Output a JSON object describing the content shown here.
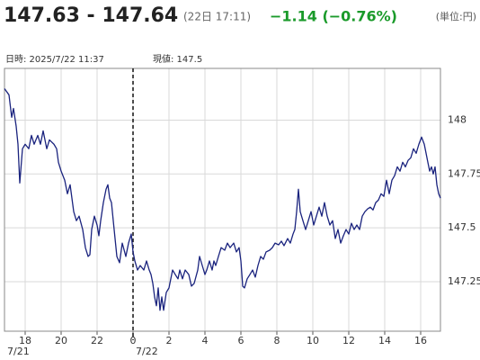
{
  "header": {
    "price": "147.63 - 147.64",
    "time": "(22日 17:11)",
    "change": "−1.14 (−0.76%)",
    "unit": "(単位:円)"
  },
  "info": {
    "datetime": "日時: 2025/7/22  11:37",
    "current": "現値: 147.5"
  },
  "chart_data": {
    "type": "line",
    "x": [
      -7.15,
      -6.9,
      -6.75,
      -6.65,
      -6.5,
      -6.4,
      -6.3,
      -6.15,
      -6,
      -5.8,
      -5.65,
      -5.5,
      -5.3,
      -5.15,
      -5,
      -4.8,
      -4.65,
      -4.4,
      -4.25,
      -4.15,
      -4,
      -3.8,
      -3.65,
      -3.5,
      -3.3,
      -3.15,
      -3,
      -2.8,
      -2.65,
      -2.5,
      -2.4,
      -2.3,
      -2.15,
      -2,
      -1.9,
      -1.8,
      -1.65,
      -1.5,
      -1.4,
      -1.3,
      -1.2,
      -1.1,
      -1,
      -0.9,
      -0.75,
      -0.6,
      -0.4,
      -0.25,
      -0.1,
      0,
      0.1,
      0.25,
      0.4,
      0.6,
      0.75,
      0.9,
      1,
      1.1,
      1.2,
      1.3,
      1.4,
      1.5,
      1.6,
      1.7,
      1.85,
      2,
      2.1,
      2.2,
      2.35,
      2.5,
      2.6,
      2.75,
      2.9,
      3.1,
      3.25,
      3.4,
      3.6,
      3.7,
      3.85,
      4,
      4.1,
      4.25,
      4.4,
      4.5,
      4.6,
      4.75,
      4.9,
      5.1,
      5.25,
      5.4,
      5.6,
      5.75,
      5.9,
      6,
      6.1,
      6.2,
      6.35,
      6.5,
      6.65,
      6.8,
      6.95,
      7.1,
      7.25,
      7.4,
      7.6,
      7.75,
      7.9,
      8.1,
      8.25,
      8.4,
      8.6,
      8.75,
      8.9,
      9,
      9.1,
      9.2,
      9.3,
      9.45,
      9.6,
      9.75,
      9.9,
      10.05,
      10.2,
      10.35,
      10.5,
      10.65,
      10.8,
      10.95,
      11.1,
      11.25,
      11.4,
      11.55,
      11.7,
      11.85,
      12,
      12.15,
      12.3,
      12.45,
      12.6,
      12.75,
      12.9,
      13.05,
      13.2,
      13.35,
      13.5,
      13.65,
      13.8,
      13.95,
      14.1,
      14.25,
      14.4,
      14.55,
      14.7,
      14.85,
      15,
      15.15,
      15.3,
      15.45,
      15.6,
      15.75,
      15.9,
      16.05,
      16.2,
      16.3,
      16.4,
      16.5,
      16.6,
      16.7,
      16.8,
      16.9,
      17,
      17.1
    ],
    "series": [
      {
        "color": "#1a237e",
        "values": [
          148.146,
          148.117,
          148.013,
          148.054,
          147.971,
          147.888,
          147.708,
          147.867,
          147.888,
          147.867,
          147.929,
          147.888,
          147.929,
          147.888,
          147.95,
          147.867,
          147.908,
          147.888,
          147.867,
          147.804,
          147.763,
          147.721,
          147.658,
          147.7,
          147.575,
          147.533,
          147.554,
          147.492,
          147.408,
          147.367,
          147.375,
          147.492,
          147.554,
          147.513,
          147.463,
          147.533,
          147.617,
          147.679,
          147.7,
          147.638,
          147.617,
          147.533,
          147.45,
          147.367,
          147.338,
          147.429,
          147.367,
          147.429,
          147.471,
          147.388,
          147.346,
          147.304,
          147.325,
          147.304,
          147.346,
          147.304,
          147.283,
          147.242,
          147.179,
          147.138,
          147.221,
          147.117,
          147.179,
          147.117,
          147.2,
          147.221,
          147.263,
          147.304,
          147.283,
          147.263,
          147.304,
          147.263,
          147.304,
          147.283,
          147.229,
          147.242,
          147.304,
          147.367,
          147.325,
          147.283,
          147.304,
          147.346,
          147.304,
          147.346,
          147.325,
          147.367,
          147.408,
          147.396,
          147.429,
          147.408,
          147.429,
          147.388,
          147.408,
          147.346,
          147.229,
          147.221,
          147.263,
          147.283,
          147.304,
          147.271,
          147.325,
          147.367,
          147.354,
          147.388,
          147.396,
          147.408,
          147.429,
          147.421,
          147.438,
          147.417,
          147.45,
          147.429,
          147.471,
          147.492,
          147.575,
          147.679,
          147.575,
          147.533,
          147.492,
          147.533,
          147.575,
          147.513,
          147.554,
          147.596,
          147.554,
          147.617,
          147.554,
          147.513,
          147.533,
          147.45,
          147.492,
          147.429,
          147.463,
          147.492,
          147.471,
          147.521,
          147.492,
          147.513,
          147.492,
          147.554,
          147.575,
          147.588,
          147.596,
          147.583,
          147.617,
          147.629,
          147.658,
          147.646,
          147.721,
          147.658,
          147.721,
          147.742,
          147.783,
          147.763,
          147.804,
          147.783,
          147.813,
          147.825,
          147.867,
          147.846,
          147.888,
          147.921,
          147.888,
          147.846,
          147.804,
          147.763,
          147.783,
          147.75,
          147.783,
          147.7,
          147.658,
          147.638
        ]
      }
    ],
    "xlim": [
      -7.15,
      17.1
    ],
    "xticks": [
      {
        "value": -6,
        "label": "18"
      },
      {
        "value": -4,
        "label": "20"
      },
      {
        "value": -2,
        "label": "22"
      },
      0,
      2,
      4,
      6,
      8,
      10,
      12,
      14,
      16
    ],
    "ylim": [
      147.02,
      148.24
    ],
    "yticks": [
      148,
      147.75,
      147.5,
      147.25
    ],
    "day_boundary": 0,
    "date_labels": [
      "7/21",
      "7/22"
    ],
    "grid": true
  }
}
